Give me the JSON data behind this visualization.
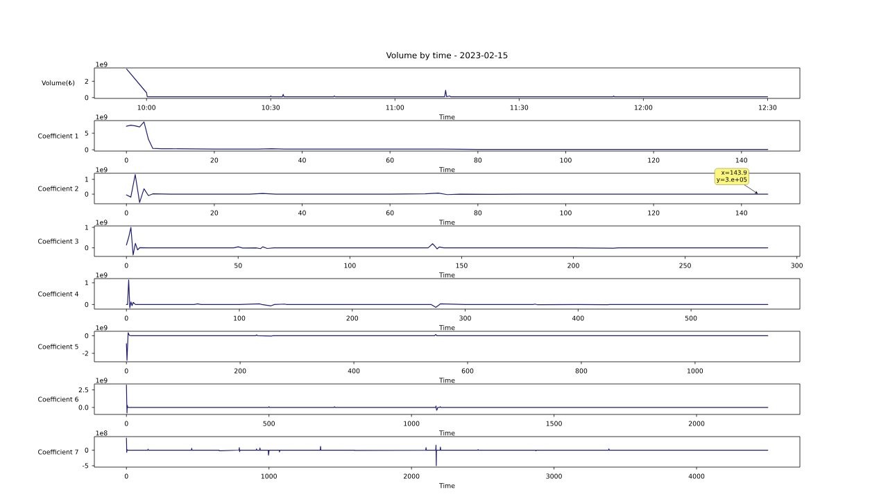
{
  "chart_data": [
    {
      "type": "line",
      "title": "Volume by time - 2023-02-15",
      "xlabel": "Time",
      "ylabel": "Volume(₺)",
      "xlim": [
        9.79,
        12.63
      ],
      "xticks": [
        {
          "value": 10,
          "label": "10:00"
        },
        {
          "value": 10.5,
          "label": "10:30"
        },
        {
          "value": 11,
          "label": "11:00"
        },
        {
          "value": 11.5,
          "label": "11:30"
        },
        {
          "value": 12,
          "label": "12:00"
        },
        {
          "value": 12.5,
          "label": "12:30"
        }
      ],
      "ylim": [
        -0.1,
        3.64
      ],
      "yticks": [
        0,
        2
      ],
      "annotations": [
        "1e9"
      ],
      "series": [
        {
          "color": "#1c1c78",
          "x": [
            9.92,
            10.0,
            10.003,
            10.2,
            10.4,
            10.498,
            10.5,
            10.503,
            10.547,
            10.55,
            10.553,
            10.753,
            10.756,
            10.76,
            11.0,
            11.2,
            11.204,
            11.208,
            11.22,
            11.225,
            11.5,
            11.878,
            11.88,
            11.883,
            12.2,
            12.5
          ],
          "values": [
            3.5,
            0.6,
            0.1,
            0.1,
            0.1,
            0.1,
            0.2,
            0.1,
            0.1,
            0.4,
            0.1,
            0.1,
            0.2,
            0.1,
            0.1,
            0.1,
            0.9,
            0.1,
            0.2,
            0.1,
            0.1,
            0.1,
            0.2,
            0.1,
            0.1,
            0.1
          ]
        }
      ]
    },
    {
      "type": "line",
      "xlabel": "Time",
      "ylabel": "Coefficient 1",
      "xlim": [
        -7.3,
        153.3
      ],
      "xticks": [
        0,
        20,
        40,
        60,
        80,
        100,
        120,
        140
      ],
      "ylim": [
        -0.4,
        8.8
      ],
      "yticks": [
        0,
        5
      ],
      "annotations": [
        "1e9"
      ],
      "series": [
        {
          "color": "#1c1c78",
          "x": [
            0,
            1,
            2,
            3,
            4,
            5,
            6,
            8,
            10,
            20,
            30,
            33,
            36,
            40,
            50,
            60,
            70,
            72,
            80,
            90,
            100,
            110,
            120,
            130,
            140,
            146
          ],
          "values": [
            7.1,
            7.4,
            7.2,
            6.9,
            8.4,
            3.2,
            0.4,
            0.3,
            0.3,
            0.2,
            0.2,
            0.3,
            0.2,
            0.2,
            0.2,
            0.2,
            0.2,
            0.2,
            0.1,
            0.1,
            0.1,
            0.1,
            0.1,
            0.1,
            0.1,
            0.1
          ]
        }
      ]
    },
    {
      "type": "line",
      "xlabel": "Time",
      "ylabel": "Coefficient 2",
      "xlim": [
        -7.3,
        153.3
      ],
      "xticks": [
        0,
        20,
        40,
        60,
        80,
        100,
        120,
        140
      ],
      "ylim": [
        -0.65,
        1.41
      ],
      "yticks": [
        0,
        1
      ],
      "annotations": [
        "1e9",
        {
          "text": "x=143.9 y=3.e+05",
          "x": 143.9,
          "y": 0.0003
        }
      ],
      "series": [
        {
          "color": "#1c1c78",
          "x": [
            0,
            1,
            2,
            3,
            4,
            5,
            6,
            10,
            20,
            28,
            31,
            34,
            40,
            50,
            60,
            68,
            71,
            73,
            76,
            83,
            90,
            100,
            110,
            120,
            130,
            140,
            146
          ],
          "values": [
            -0.05,
            -0.2,
            1.32,
            -0.56,
            0.36,
            -0.1,
            0.02,
            0.0,
            0.0,
            0.0,
            0.05,
            0.0,
            0.0,
            0.0,
            0.0,
            0.02,
            0.07,
            -0.03,
            0.0,
            -0.01,
            0.0,
            0.0,
            0.0,
            0.0,
            0.0,
            0.0,
            0.0
          ]
        }
      ]
    },
    {
      "type": "line",
      "xlabel": "Time",
      "ylabel": "Coefficient 3",
      "xlim": [
        -14.35,
        301.35
      ],
      "xticks": [
        0,
        50,
        100,
        150,
        200,
        250,
        300
      ],
      "ylim": [
        -0.42,
        1.07
      ],
      "yticks": [
        0,
        1
      ],
      "annotations": [
        "1e9"
      ],
      "series": [
        {
          "color": "#1c1c78",
          "x": [
            0,
            1,
            2,
            3,
            4,
            5,
            6,
            10,
            20,
            30,
            40,
            48,
            50,
            52,
            58,
            60,
            61,
            63,
            66,
            80,
            100,
            120,
            135,
            137,
            138,
            139,
            140,
            142,
            160,
            180,
            200,
            218,
            220,
            240,
            260,
            287
          ],
          "values": [
            0.14,
            0.51,
            1.0,
            -0.35,
            0.22,
            -0.1,
            0.01,
            0.0,
            0.0,
            0.0,
            0.0,
            0.0,
            0.05,
            -0.01,
            0.0,
            -0.04,
            0.05,
            -0.03,
            0.0,
            0.0,
            0.0,
            0.0,
            0.0,
            0.2,
            0.08,
            -0.05,
            0.04,
            0.0,
            0.0,
            0.0,
            0.0,
            -0.02,
            0.0,
            0.0,
            0.0,
            0.0
          ]
        }
      ]
    },
    {
      "type": "line",
      "xlabel": "Time",
      "ylabel": "Coefficient 4",
      "xlim": [
        -28.4,
        596.4
      ],
      "xticks": [
        0,
        100,
        200,
        300,
        400,
        500
      ],
      "ylim": [
        -0.21,
        1.19
      ],
      "yticks": [
        0,
        1
      ],
      "annotations": [
        "1e9"
      ],
      "series": [
        {
          "color": "#1c1c78",
          "x": [
            0,
            1,
            2,
            3,
            4,
            5,
            6,
            8,
            20,
            60,
            63,
            66,
            100,
            118,
            120,
            128,
            131,
            140,
            142,
            200,
            260,
            270,
            273,
            274,
            276,
            278,
            300,
            360,
            362,
            364,
            400,
            426,
            428,
            500,
            568
          ],
          "values": [
            0.0,
            0.0,
            1.13,
            -0.15,
            0.12,
            -0.05,
            0.1,
            0.0,
            0.0,
            0.0,
            0.03,
            0.0,
            0.0,
            0.03,
            0.0,
            -0.06,
            0.0,
            0.02,
            0.0,
            0.0,
            0.0,
            0.0,
            -0.1,
            -0.13,
            -0.05,
            0.03,
            0.0,
            0.0,
            0.02,
            -0.01,
            0.0,
            -0.01,
            0.0,
            0.0,
            0.0
          ]
        }
      ]
    },
    {
      "type": "line",
      "xlabel": "Time",
      "ylabel": "Coefficient 5",
      "xlim": [
        -56.4,
        1184.4
      ],
      "xticks": [
        0,
        200,
        400,
        600,
        800,
        1000
      ],
      "ylim": [
        -2.96,
        0.51
      ],
      "yticks": [
        -2,
        0
      ],
      "annotations": [
        "1e9"
      ],
      "series": [
        {
          "color": "#1c1c78",
          "x": [
            0,
            1,
            3,
            5,
            8,
            100,
            200,
            227,
            229,
            231,
            255,
            257,
            300,
            400,
            500,
            542,
            544,
            546,
            700,
            900,
            1128
          ],
          "values": [
            -0.9,
            -2.8,
            0.35,
            0.05,
            0.0,
            0.0,
            0.0,
            0.0,
            0.1,
            0.0,
            -0.03,
            0.0,
            0.0,
            0.0,
            0.0,
            0.0,
            0.15,
            0.0,
            0.0,
            0.0,
            0.0
          ]
        }
      ]
    },
    {
      "type": "line",
      "xlabel": "Time",
      "ylabel": "Coefficient 6",
      "xlim": [
        -112.5,
        2362.5
      ],
      "xticks": [
        0,
        500,
        1000,
        1500,
        2000
      ],
      "ylim": [
        -1.0,
        3.35
      ],
      "yticks": [
        {
          "value": 0,
          "label": "0.0"
        },
        2.5
      ],
      "annotations": [
        "1e9"
      ],
      "series": [
        {
          "color": "#1c1c78",
          "x": [
            0,
            1,
            2,
            3,
            5,
            200,
            498,
            500,
            502,
            728,
            730,
            732,
            1000,
            1084,
            1086,
            1088,
            1090,
            1092,
            1099,
            1101,
            1103,
            1400,
            1800,
            2250
          ],
          "values": [
            3.2,
            1.0,
            -0.8,
            0.3,
            0.0,
            0.0,
            0.0,
            0.1,
            0.0,
            0.0,
            0.1,
            0.0,
            0.0,
            0.0,
            0.2,
            -0.4,
            -0.3,
            0.0,
            0.0,
            0.1,
            0.0,
            0.0,
            0.0,
            0.0
          ]
        }
      ]
    },
    {
      "type": "line",
      "xlabel": "Time",
      "ylabel": "Coefficient 7",
      "xlim": [
        -225,
        4725
      ],
      "xticks": [
        0,
        1000,
        2000,
        3000,
        4000
      ],
      "ylim": [
        -5.45,
        4.35
      ],
      "yticks": [
        -5,
        0
      ],
      "annotations": [
        "1e8"
      ],
      "series": [
        {
          "color": "#1c1c78",
          "x": [
            0,
            1,
            2,
            4,
            8,
            150,
            152,
            154,
            456,
            458,
            460,
            650,
            652,
            790,
            792,
            794,
            796,
            911,
            913,
            915,
            935,
            937,
            939,
            995,
            997,
            999,
            1001,
            1072,
            1074,
            1076,
            1360,
            1362,
            1364,
            1600,
            1602,
            2100,
            2102,
            2104,
            2170,
            2172,
            2173,
            2174,
            2175,
            2201,
            2203,
            2205,
            2465,
            2467,
            2469,
            2871,
            2873,
            2875,
            3383,
            3385,
            3387,
            4500
          ],
          "values": [
            3.9,
            2.2,
            -0.7,
            0.2,
            0.0,
            0.0,
            0.3,
            0.0,
            0.0,
            0.6,
            0.0,
            0.0,
            -0.2,
            0.0,
            0.8,
            -0.5,
            0.0,
            0.0,
            0.4,
            0.0,
            0.0,
            0.7,
            0.0,
            0.0,
            -1.6,
            -0.9,
            0.0,
            0.0,
            -0.6,
            0.0,
            0.0,
            1.2,
            0.0,
            0.0,
            -0.1,
            0.0,
            0.8,
            0.0,
            0.0,
            1.6,
            -1.8,
            -5.0,
            0.0,
            0.0,
            1.0,
            0.0,
            0.0,
            0.2,
            0.0,
            0.0,
            -0.2,
            0.0,
            0.0,
            0.4,
            0.0,
            0.0
          ]
        }
      ]
    }
  ]
}
